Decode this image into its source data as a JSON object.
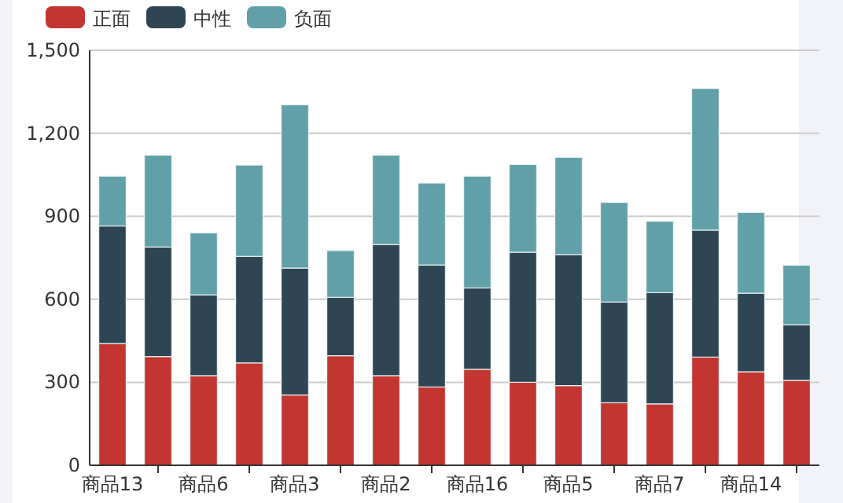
{
  "chart_data": {
    "type": "bar",
    "stacked": true,
    "categories": [
      "商品13",
      null,
      "商品6",
      null,
      "商品3",
      null,
      "商品2",
      null,
      "商品16",
      null,
      "商品5",
      null,
      "商品7",
      null,
      "商品14",
      null
    ],
    "series": [
      {
        "name": "正面",
        "color": "#c23531",
        "values": [
          440,
          393,
          324,
          370,
          254,
          396,
          324,
          283,
          347,
          300,
          288,
          226,
          222,
          391,
          338,
          307
        ]
      },
      {
        "name": "中性",
        "color": "#2f4554",
        "values": [
          425,
          396,
          292,
          385,
          459,
          211,
          474,
          441,
          294,
          470,
          474,
          364,
          402,
          459,
          284,
          201
        ]
      },
      {
        "name": "负面",
        "color": "#61a0a8",
        "values": [
          180,
          332,
          224,
          330,
          590,
          169,
          323,
          296,
          404,
          317,
          351,
          360,
          258,
          512,
          292,
          215
        ]
      }
    ],
    "ylim": [
      0,
      1500
    ],
    "yticks": [
      0,
      {
        "value": 300,
        "label": "300"
      },
      {
        "value": 600,
        "label": "600"
      },
      {
        "value": 900,
        "label": "900"
      },
      {
        "value": 1200,
        "label": "1,200"
      },
      {
        "value": 1500,
        "label": "1,500"
      }
    ],
    "grid": "y",
    "legend": "top left"
  }
}
